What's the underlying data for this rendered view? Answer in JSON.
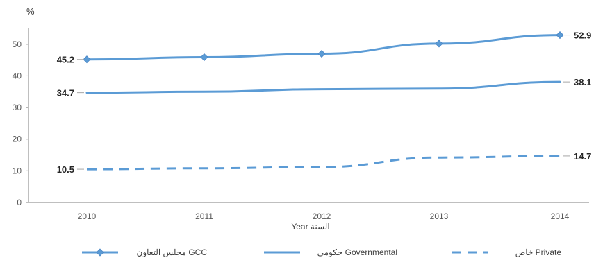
{
  "chart_data": {
    "type": "line",
    "y_unit": "%",
    "xlabel": "Year السنة",
    "x": [
      "2010",
      "2011",
      "2012",
      "2013",
      "2014"
    ],
    "ylim": [
      0,
      50
    ],
    "yticks": [
      0,
      10,
      20,
      30,
      40,
      50
    ],
    "grid": false,
    "legend_position": "bottom",
    "series": [
      {
        "name": "مجلس التعاون GCC",
        "values": [
          45.2,
          45.9,
          47.0,
          50.2,
          52.9
        ],
        "style": "solid",
        "marker": "diamond",
        "color": "#5B9BD5",
        "labels": {
          "first": "45.2",
          "last": "52.9"
        }
      },
      {
        "name": "حكومي Governmental",
        "values": [
          34.7,
          35.0,
          35.8,
          36.0,
          38.1
        ],
        "style": "solid",
        "marker": "none",
        "color": "#5B9BD5",
        "labels": {
          "first": "34.7",
          "last": "38.1"
        }
      },
      {
        "name": "خاص Private",
        "values": [
          10.5,
          10.8,
          11.2,
          14.2,
          14.7
        ],
        "style": "dashed",
        "marker": "none",
        "color": "#5B9BD5",
        "labels": {
          "first": "10.5",
          "last": "14.7"
        }
      }
    ]
  }
}
